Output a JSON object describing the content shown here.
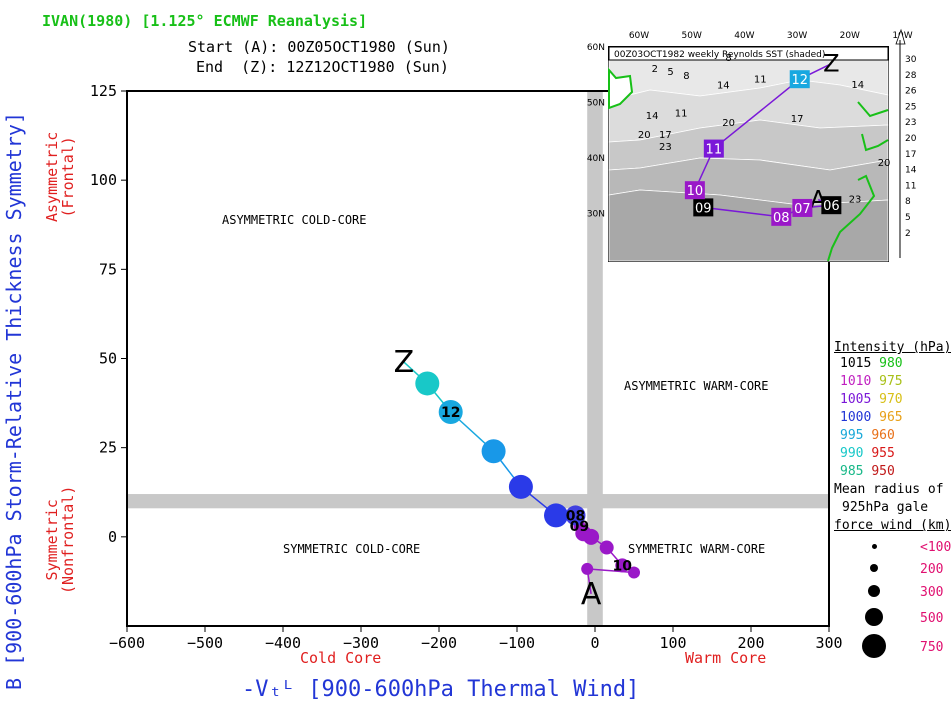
{
  "header": {
    "title": "IVAN(1980) [1.125° ECMWF Reanalysis]",
    "start": "Start (A): 00Z05OCT1980 (Sun)",
    "end": "End  (Z): 12Z12OCT1980 (Sun)"
  },
  "axes": {
    "y_title_b": "B",
    "y_title_main": "[900-600hPa Storm-Relative Thickness Symmetry]",
    "y_top": "Asymmetric\n(Frontal)",
    "y_bottom": "Symmetric\n(Nonfrontal)",
    "x_title": "-Vₜᴸ [900-600hPa Thermal Wind]",
    "x_cold": "Cold Core",
    "x_warm": "Warm Core"
  },
  "quadrants": {
    "ul": "ASYMMETRIC COLD-CORE",
    "ur": "ASYMMETRIC WARM-CORE",
    "ll": "SYMMETRIC COLD-CORE",
    "lr": "SYMMETRIC WARM-CORE"
  },
  "legend": {
    "title": "Intensity (hPa):",
    "pairs": [
      [
        "1015",
        "#000000",
        "980",
        "#18c018"
      ],
      [
        "1010",
        "#c020c0",
        "975",
        "#a8c018"
      ],
      [
        "1005",
        "#7a18d8",
        "970",
        "#d8c018"
      ],
      [
        "1000",
        "#2236d6",
        "965",
        "#e8a018"
      ],
      [
        "995",
        "#18a8d8",
        "960",
        "#e87018"
      ],
      [
        "990",
        "#18c8c8",
        "955",
        "#d81818"
      ],
      [
        "985",
        "#18b888",
        "950",
        "#c01818"
      ]
    ],
    "radius_title": [
      "Mean radius of",
      "925hPa gale",
      "force wind (km):"
    ],
    "radius_labels": [
      "<100",
      "200",
      "300",
      "500",
      "750"
    ]
  },
  "inset": {
    "banner": "00Z03OCT1982 weekly Reynolds SST (shaded)",
    "lon_labels": [
      "60W",
      "50W",
      "40W",
      "30W",
      "20W",
      "10W"
    ],
    "lat_labels": [
      "60N",
      "50N",
      "40N",
      "30N"
    ],
    "sst_scale": [
      "30",
      "28",
      "26",
      "25",
      "23",
      "20",
      "17",
      "14",
      "11",
      "8",
      "5",
      "2"
    ],
    "contour_labels": [
      {
        "t": "8",
        "x": -43,
        "y": 57.5
      },
      {
        "t": "2",
        "x": -57,
        "y": 55.5
      },
      {
        "t": "5",
        "x": -54,
        "y": 55
      },
      {
        "t": "8",
        "x": -51,
        "y": 54.2
      },
      {
        "t": "14",
        "x": -44,
        "y": 52.5
      },
      {
        "t": "11",
        "x": -37,
        "y": 53.6
      },
      {
        "t": "14",
        "x": -18.5,
        "y": 52.6
      },
      {
        "t": "11",
        "x": -52,
        "y": 47.5
      },
      {
        "t": "14",
        "x": -57.5,
        "y": 47
      },
      {
        "t": "20",
        "x": -43,
        "y": 45.8
      },
      {
        "t": "17",
        "x": -30,
        "y": 46.5
      },
      {
        "t": "20",
        "x": -59,
        "y": 43.6
      },
      {
        "t": "17",
        "x": -55,
        "y": 43.6
      },
      {
        "t": "23",
        "x": -55,
        "y": 41.4
      },
      {
        "t": "20",
        "x": -13.5,
        "y": 38.6
      },
      {
        "t": "23",
        "x": -19,
        "y": 32
      }
    ],
    "track": [
      {
        "label": "A",
        "lon": -26.0,
        "lat": 32.5
      },
      {
        "label": "06",
        "lon": -23.5,
        "lat": 31.5
      },
      {
        "label": "07",
        "lon": -29,
        "lat": 31.0
      },
      {
        "label": "08",
        "lon": -33,
        "lat": 29.4
      },
      {
        "label": "09",
        "lon": -47.8,
        "lat": 31.1
      },
      {
        "label": "10",
        "lon": -49.4,
        "lat": 34.2
      },
      {
        "label": "11",
        "lon": -45.8,
        "lat": 41.7
      },
      {
        "label": "12",
        "lon": -29.5,
        "lat": 54.2
      },
      {
        "label": "Z",
        "lon": -23.5,
        "lat": 57.0
      }
    ]
  },
  "chart_data": {
    "type": "scatter",
    "title": "IVAN(1980) [1.125° ECMWF Reanalysis]",
    "xlabel": "-Vₜᴸ [900-600hPa Thermal Wind]",
    "ylabel": "B [900-600hPa Storm-Relative Thickness Symmetry]",
    "xlim": [
      -600,
      300
    ],
    "ylim": [
      -25,
      125
    ],
    "xticks": [
      -600,
      -500,
      -400,
      -300,
      -200,
      -100,
      0,
      100,
      200,
      300
    ],
    "yticks": [
      0,
      25,
      50,
      75,
      100,
      125
    ],
    "grid": false,
    "series": [
      {
        "points": [
          {
            "label": "A",
            "x": -5,
            "y": -16
          },
          {
            "label": "",
            "x": -10,
            "y": -9
          },
          {
            "label": "",
            "x": 50,
            "y": -10
          },
          {
            "label": "10",
            "x": 35,
            "y": -8
          },
          {
            "label": "",
            "x": 15,
            "y": -3
          },
          {
            "label": "",
            "x": -5,
            "y": 0
          },
          {
            "label": "",
            "x": -15,
            "y": 1
          },
          {
            "label": "09",
            "x": -20,
            "y": 3
          },
          {
            "label": "08",
            "x": -25,
            "y": 6
          },
          {
            "label": "",
            "x": -50,
            "y": 6
          },
          {
            "label": "",
            "x": -95,
            "y": 14
          },
          {
            "label": "",
            "x": -130,
            "y": 24
          },
          {
            "label": "12",
            "x": -185,
            "y": 35
          },
          {
            "label": "",
            "x": -215,
            "y": 43
          },
          {
            "label": "Z",
            "x": -245,
            "y": 49
          }
        ],
        "colors": [
          "#9a18c8",
          "#9a18c8",
          "#9a18c8",
          "#9a18c8",
          "#9a18c8",
          "#9a18c8",
          "#9a18c8",
          "#9a18c8",
          "#4040e0",
          "#2a3ae8",
          "#2a3ae8",
          "#1898e8",
          "#18a8e0",
          "#18c8c8",
          "#18c8c8"
        ]
      }
    ],
    "quadrant_labels": [
      "ASYMMETRIC COLD-CORE",
      "ASYMMETRIC WARM-CORE",
      "SYMMETRIC COLD-CORE",
      "SYMMETRIC WARM-CORE"
    ]
  }
}
